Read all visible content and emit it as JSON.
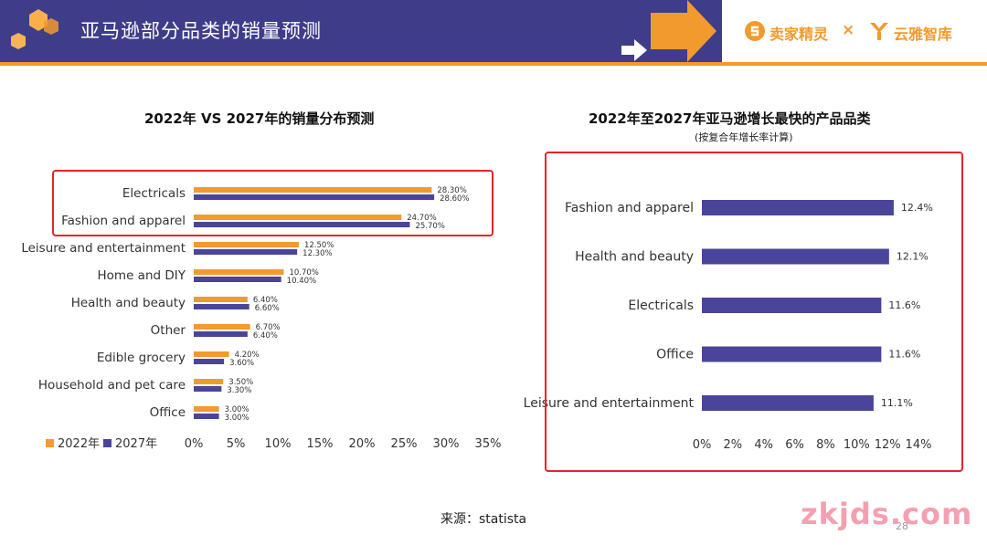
{
  "header": {
    "title": "亚马逊部分品类的销量预测",
    "brand1": "卖家精灵",
    "brand_separator": "×",
    "brand2": "云雅智库",
    "band_color": "#3f3d8a",
    "accent_color": "#f29a2e"
  },
  "chart_data": [
    {
      "type": "bar",
      "orientation": "horizontal",
      "title": "2022年 VS 2027年的销量分布预测",
      "categories": [
        "Electricals",
        "Fashion and apparel",
        "Leisure and entertainment",
        "Home and DIY",
        "Health and beauty",
        "Other",
        "Edible grocery",
        "Household and pet care",
        "Office"
      ],
      "series": [
        {
          "name": "2022年",
          "color": "#f29a2e",
          "values": [
            28.3,
            24.7,
            12.5,
            10.7,
            6.4,
            6.7,
            4.2,
            3.5,
            3.0
          ],
          "labels": [
            "28.30%",
            "24.70%",
            "12.50%",
            "10.70%",
            "6.40%",
            "6.70%",
            "4.20%",
            "3.50%",
            "3.00%"
          ]
        },
        {
          "name": "2027年",
          "color": "#4a449a",
          "values": [
            28.6,
            25.7,
            12.3,
            10.4,
            6.6,
            6.4,
            3.6,
            3.3,
            3.0
          ],
          "labels": [
            "28.60%",
            "25.70%",
            "12.30%",
            "10.40%",
            "6.60%",
            "6.40%",
            "3.60%",
            "3.30%",
            "3.00%"
          ]
        }
      ],
      "xlim": [
        0,
        35
      ],
      "xticks": [
        "0%",
        "5%",
        "10%",
        "15%",
        "20%",
        "25%",
        "30%",
        "35%"
      ],
      "grid": false,
      "legend": "bottom-left",
      "highlight_categories": [
        "Electricals",
        "Fashion and apparel"
      ],
      "highlight_color": "#e8232b"
    },
    {
      "type": "bar",
      "orientation": "horizontal",
      "title": "2022年至2027年亚马逊增长最快的产品品类",
      "subtitle": "(按复合年增长率计算)",
      "categories": [
        "Fashion and apparel",
        "Health and beauty",
        "Electricals",
        "Office",
        "Leisure and entertainment"
      ],
      "series": [
        {
          "color": "#4a449a",
          "values": [
            12.4,
            12.1,
            11.6,
            11.6,
            11.1
          ],
          "labels": [
            "12.4%",
            "12.1%",
            "11.6%",
            "11.6%",
            "11.1%"
          ]
        }
      ],
      "xlim": [
        0,
        14
      ],
      "xticks": [
        "0%",
        "2%",
        "4%",
        "6%",
        "8%",
        "10%",
        "12%",
        "14%"
      ],
      "grid": false,
      "legend": "none",
      "highlight_color": "#e8232b"
    }
  ],
  "footer": {
    "source": "来源：statista",
    "page_number": "28",
    "watermark": "zkjds.com"
  }
}
